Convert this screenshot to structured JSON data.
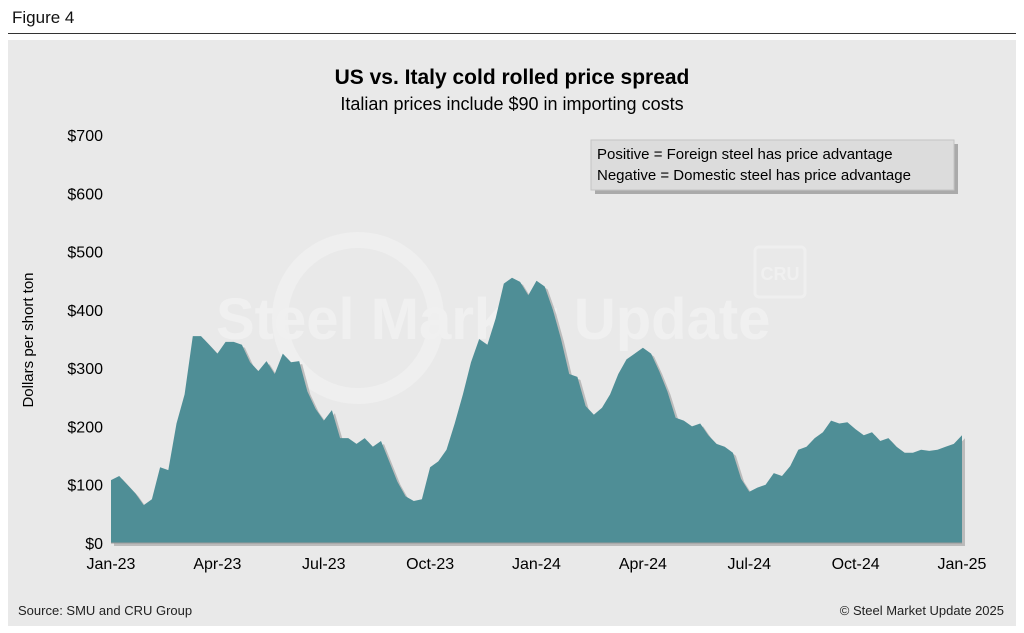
{
  "figure_label": "Figure 4",
  "source": "Source: SMU and CRU Group",
  "copyright": "© Steel Market Update 2025",
  "watermark": {
    "text": "Steel Market Update",
    "logo": "CRU"
  },
  "colors": {
    "fill": "#4f8e96",
    "background": "#e9e9e9"
  },
  "chart_data": {
    "type": "area",
    "title": "US vs. Italy cold rolled price spread",
    "subtitle": "Italian prices include $90 in importing costs",
    "ylabel": "Dollars per short ton",
    "xlabel": "",
    "ylim": [
      0,
      700
    ],
    "yticks": [
      0,
      100,
      200,
      300,
      400,
      500,
      600,
      700
    ],
    "ytick_labels": [
      "$0",
      "$100",
      "$200",
      "$300",
      "$400",
      "$500",
      "$600",
      "$700"
    ],
    "xlim": [
      0,
      104
    ],
    "xticks": [
      0,
      13,
      26,
      39,
      52,
      65,
      78,
      91,
      104
    ],
    "xtick_labels": [
      "Jan-23",
      "Apr-23",
      "Jul-23",
      "Oct-23",
      "Jan-24",
      "Apr-24",
      "Jul-24",
      "Oct-24",
      "Jan-25"
    ],
    "legend": [
      "Positive = Foreign steel has price advantage",
      "Negative = Domestic steel has price advantage"
    ],
    "legend_position": "top-right",
    "series": [
      {
        "name": "Price spread",
        "x": [
          0,
          1,
          2,
          3,
          4,
          5,
          6,
          7,
          8,
          9,
          10,
          11,
          12,
          13,
          14,
          15,
          16,
          17,
          18,
          19,
          20,
          21,
          22,
          23,
          24,
          25,
          26,
          27,
          28,
          29,
          30,
          31,
          32,
          33,
          34,
          35,
          36,
          37,
          38,
          39,
          40,
          41,
          42,
          43,
          44,
          45,
          46,
          47,
          48,
          49,
          50,
          51,
          52,
          53,
          54,
          55,
          56,
          57,
          58,
          59,
          60,
          61,
          62,
          63,
          64,
          65,
          66,
          67,
          68,
          69,
          70,
          71,
          72,
          73,
          74,
          75,
          76,
          77,
          78,
          79,
          80,
          81,
          82,
          83,
          84,
          85,
          86,
          87,
          88,
          89,
          90,
          91,
          92,
          93,
          94,
          95,
          96,
          97,
          98,
          99,
          100,
          101,
          102,
          103,
          104
        ],
        "values": [
          108,
          115,
          100,
          85,
          65,
          75,
          130,
          125,
          205,
          255,
          355,
          355,
          340,
          325,
          345,
          345,
          340,
          310,
          295,
          312,
          290,
          325,
          310,
          312,
          260,
          230,
          210,
          228,
          180,
          180,
          170,
          180,
          165,
          175,
          140,
          105,
          80,
          72,
          75,
          130,
          140,
          160,
          205,
          255,
          310,
          350,
          340,
          385,
          445,
          455,
          448,
          425,
          450,
          440,
          400,
          350,
          290,
          285,
          235,
          220,
          232,
          255,
          290,
          315,
          325,
          335,
          325,
          295,
          260,
          215,
          210,
          200,
          205,
          185,
          170,
          165,
          155,
          110,
          88,
          95,
          100,
          120,
          115,
          132,
          160,
          165,
          180,
          190,
          210,
          205,
          207,
          195,
          185,
          190,
          175,
          180,
          165,
          155,
          155,
          160,
          158,
          160,
          165,
          170,
          185
        ]
      }
    ]
  }
}
